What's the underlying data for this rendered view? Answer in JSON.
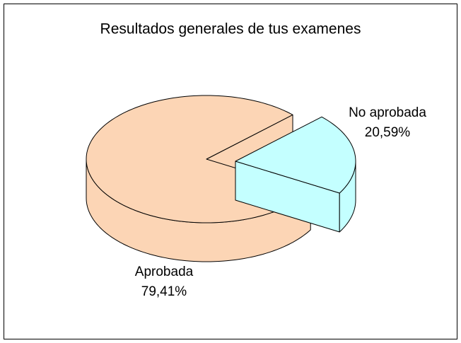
{
  "chart_data": {
    "type": "pie3d",
    "title": "Resultados generales de tus examenes",
    "categories": [
      "Aprobada",
      "No aprobada"
    ],
    "values": [
      79.41,
      20.59
    ],
    "value_labels": [
      "79,41%",
      "20,59%"
    ],
    "colors": [
      "#fcd5b5",
      "#c4ffff"
    ]
  }
}
